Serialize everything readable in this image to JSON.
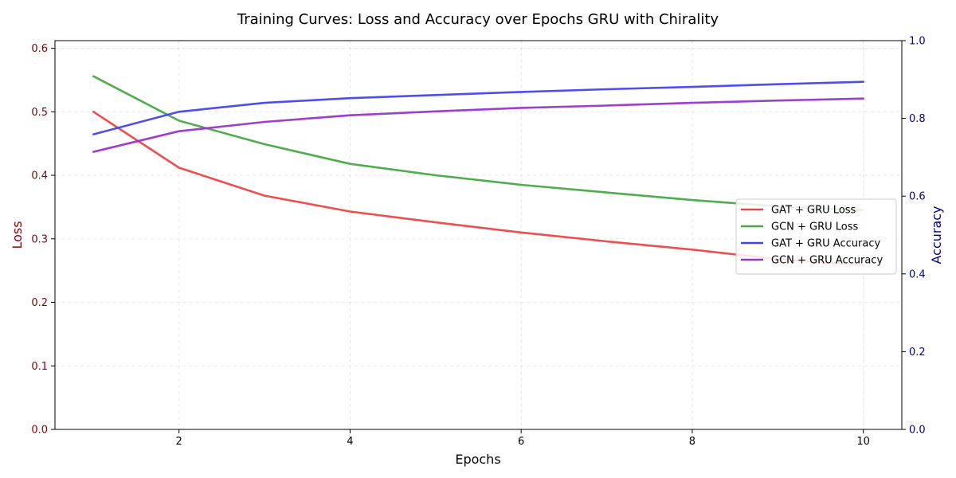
{
  "chart_data": {
    "type": "line",
    "title": "Training Curves: Loss and Accuracy over Epochs GRU with Chirality",
    "xlabel": "Epochs",
    "ylabel_left": "Loss",
    "ylabel_right": "Accuracy",
    "xlim": [
      0.55,
      10.45
    ],
    "ylim_left": [
      0,
      0.612
    ],
    "ylim_right": [
      0,
      1.0
    ],
    "x_ticks": [
      2,
      4,
      6,
      8,
      10
    ],
    "y_ticks_left": [
      0.0,
      0.1,
      0.2,
      0.3,
      0.4,
      0.5,
      0.6
    ],
    "y_ticks_right": [
      0.0,
      0.2,
      0.4,
      0.6,
      0.8,
      1.0
    ],
    "grid": true,
    "legend_position": "center-right",
    "left_axis_color": "#8b0000",
    "right_axis_color": "#00008b",
    "x": [
      1,
      2,
      3,
      4,
      5,
      6,
      7,
      8,
      9,
      10
    ],
    "series": [
      {
        "name": "GAT + GRU Loss",
        "axis": "left",
        "color": "#ee4444",
        "values": [
          0.5,
          0.412,
          0.368,
          0.343,
          0.326,
          0.31,
          0.296,
          0.283,
          0.268,
          0.259
        ]
      },
      {
        "name": "GCN + GRU Loss",
        "axis": "left",
        "color": "#44aa44",
        "values": [
          0.556,
          0.486,
          0.449,
          0.418,
          0.4,
          0.385,
          0.373,
          0.361,
          0.351,
          0.345
        ]
      },
      {
        "name": "GAT + GRU Accuracy",
        "axis": "right",
        "color": "#4444ee",
        "values": [
          0.759,
          0.817,
          0.84,
          0.852,
          0.86,
          0.868,
          0.875,
          0.881,
          0.888,
          0.894
        ]
      },
      {
        "name": "GCN + GRU Accuracy",
        "axis": "right",
        "color": "#9933cc",
        "values": [
          0.714,
          0.767,
          0.791,
          0.808,
          0.818,
          0.827,
          0.833,
          0.84,
          0.846,
          0.851
        ]
      }
    ]
  }
}
